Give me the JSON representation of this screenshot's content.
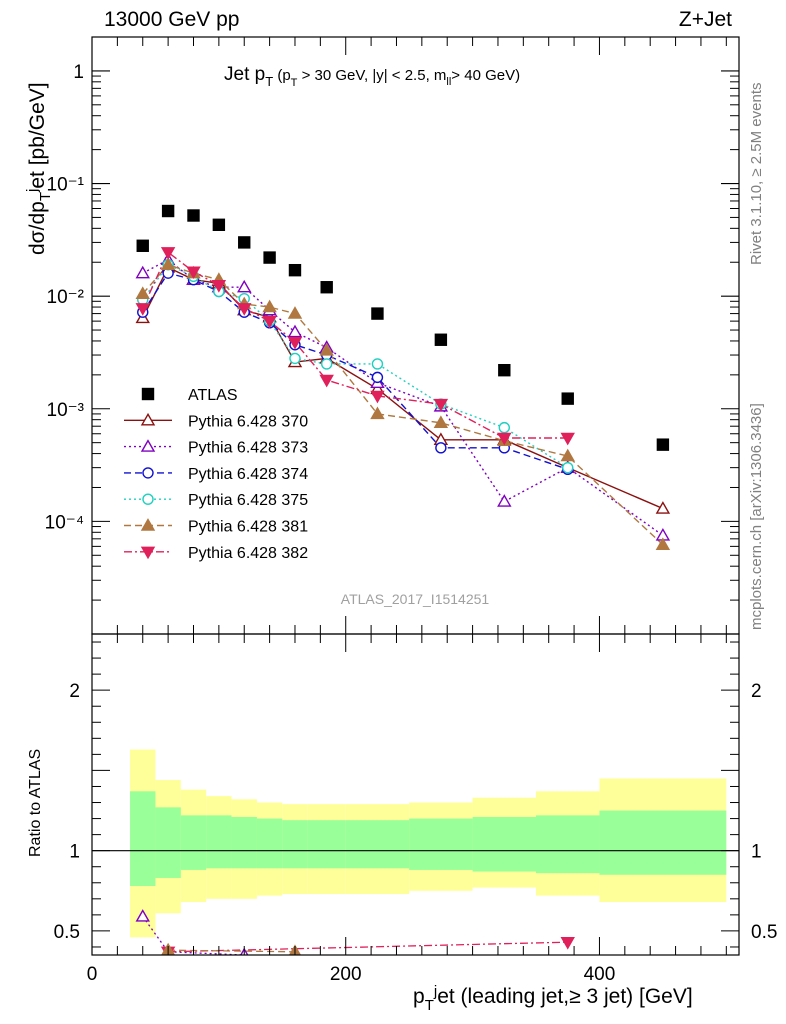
{
  "header": {
    "left": "13000 GeV pp",
    "right": "Z+Jet"
  },
  "side_labels": {
    "rivet": "Rivet 3.1.10, ≥ 2.5M events",
    "mcplots": "mcplots.cern.ch [arXiv:1306.3436]"
  },
  "chart_data": [
    {
      "type": "scatter",
      "panel": "main",
      "title": "Jet p_T (p_T > 30 GeV, |y| < 2.5, m_ll > 40 GeV)",
      "watermark": "ATLAS_2017_I1514251",
      "ylabel": "dσ/dp_T^jet [pb/GeV]",
      "xlim": [
        0,
        510
      ],
      "ylim": [
        1e-05,
        2
      ],
      "yscale": "log",
      "legend_position": "left",
      "x": [
        40,
        60,
        80,
        100,
        120,
        140,
        160,
        185,
        225,
        275,
        325,
        375,
        450
      ],
      "ytick_labels": [
        "10⁻⁴",
        "10⁻³",
        "10⁻²",
        "10⁻¹",
        "1"
      ],
      "series": [
        {
          "name": "ATLAS",
          "color": "#000000",
          "marker": "square",
          "dash": "none",
          "connect": false,
          "values": [
            0.028,
            0.057,
            0.052,
            0.043,
            0.03,
            0.022,
            0.017,
            0.012,
            0.007,
            0.0041,
            0.0022,
            0.00123,
            0.00048
          ]
        },
        {
          "name": "Pythia 6.428 370",
          "color": "#8b1010",
          "marker": "triangle-up-open",
          "dash": "solid",
          "connect": true,
          "values": [
            0.0064,
            0.018,
            0.014,
            0.013,
            0.0075,
            0.0065,
            0.0026,
            0.0028,
            0.0015,
            0.00053,
            0.00053,
            0.0003,
            0.00013
          ]
        },
        {
          "name": "Pythia 6.428 373",
          "color": "#8000c0",
          "marker": "triangle-up-open",
          "dash": "dotted",
          "connect": true,
          "values": [
            0.016,
            0.021,
            0.014,
            0.012,
            0.012,
            0.0075,
            0.0048,
            0.0035,
            0.0017,
            0.00105,
            0.00015,
            0.0003,
            7.5e-05
          ]
        },
        {
          "name": "Pythia 6.428 374",
          "color": "#1010d0",
          "marker": "circle-open",
          "dash": "dashed",
          "connect": true,
          "values": [
            0.0072,
            0.016,
            0.014,
            0.011,
            0.0072,
            0.0058,
            0.0037,
            0.003,
            0.0019,
            0.00045,
            0.00045,
            0.00029,
            null
          ]
        },
        {
          "name": "Pythia 6.428 375",
          "color": "#20d0c0",
          "marker": "circle-open",
          "dash": "dotted",
          "connect": true,
          "values": [
            0.0093,
            0.019,
            0.015,
            0.011,
            0.0095,
            0.006,
            0.0028,
            0.0025,
            0.0025,
            0.0011,
            0.00068,
            0.0003,
            null
          ]
        },
        {
          "name": "Pythia 6.428 381",
          "color": "#b07840",
          "marker": "triangle-up-filled",
          "dash": "dashed",
          "connect": true,
          "values": [
            0.0105,
            0.019,
            0.016,
            0.014,
            0.0085,
            0.008,
            0.007,
            0.0033,
            0.0009,
            0.00075,
            0.00052,
            0.00038,
            6.2e-05
          ]
        },
        {
          "name": "Pythia 6.428 382",
          "color": "#e0205a",
          "marker": "triangle-down-filled",
          "dash": "dashdot",
          "connect": true,
          "values": [
            0.0078,
            0.0245,
            0.0165,
            0.0125,
            0.0078,
            0.006,
            0.0039,
            0.0018,
            0.0013,
            0.0011,
            0.00055,
            0.00055,
            null
          ]
        }
      ]
    },
    {
      "type": "line",
      "panel": "ratio",
      "ylabel": "Ratio to ATLAS",
      "xlabel": "p_T^jet (leading jet,≥ 3 jet) [GeV]",
      "xlim": [
        0,
        510
      ],
      "ylim": [
        0.35,
        2.35
      ],
      "yticks": [
        0.5,
        1,
        2
      ],
      "ytick_labels": [
        "0.5",
        "1",
        "2"
      ],
      "xticks": [
        0,
        200,
        400
      ],
      "xtick_labels": [
        "0",
        "200",
        "400"
      ],
      "reference_line": 1,
      "bands": {
        "edges": [
          30,
          50,
          70,
          90,
          110,
          130,
          150,
          170,
          200,
          250,
          300,
          350,
          400,
          500
        ],
        "yellow_lo": [
          0.46,
          0.61,
          0.68,
          0.7,
          0.7,
          0.72,
          0.73,
          0.73,
          0.73,
          0.75,
          0.77,
          0.72,
          0.68
        ],
        "yellow_hi": [
          1.63,
          1.44,
          1.38,
          1.34,
          1.32,
          1.3,
          1.29,
          1.29,
          1.29,
          1.3,
          1.33,
          1.37,
          1.45
        ],
        "green_lo": [
          0.78,
          0.83,
          0.88,
          0.89,
          0.89,
          0.89,
          0.89,
          0.89,
          0.89,
          0.88,
          0.87,
          0.86,
          0.85
        ],
        "green_hi": [
          1.37,
          1.27,
          1.22,
          1.22,
          1.21,
          1.2,
          1.19,
          1.19,
          1.19,
          1.2,
          1.21,
          1.22,
          1.25
        ]
      },
      "series": [
        {
          "name": "Pythia 6.428 373",
          "color": "#8000c0",
          "marker": "triangle-up-open",
          "dash": "dotted",
          "x": [
            40,
            60,
            120
          ],
          "values": [
            0.59,
            0.37,
            0.35
          ]
        },
        {
          "name": "Pythia 6.428 382",
          "color": "#e0205a",
          "marker": "triangle-down-filled",
          "dash": "dashdot",
          "x": [
            60,
            375
          ],
          "values": [
            0.37,
            0.43
          ]
        },
        {
          "name": "Pythia 6.428 381",
          "color": "#b07840",
          "marker": "triangle-up-filled",
          "dash": "dashed",
          "x": [
            60,
            160
          ],
          "values": [
            0.38,
            0.37
          ]
        }
      ]
    }
  ]
}
